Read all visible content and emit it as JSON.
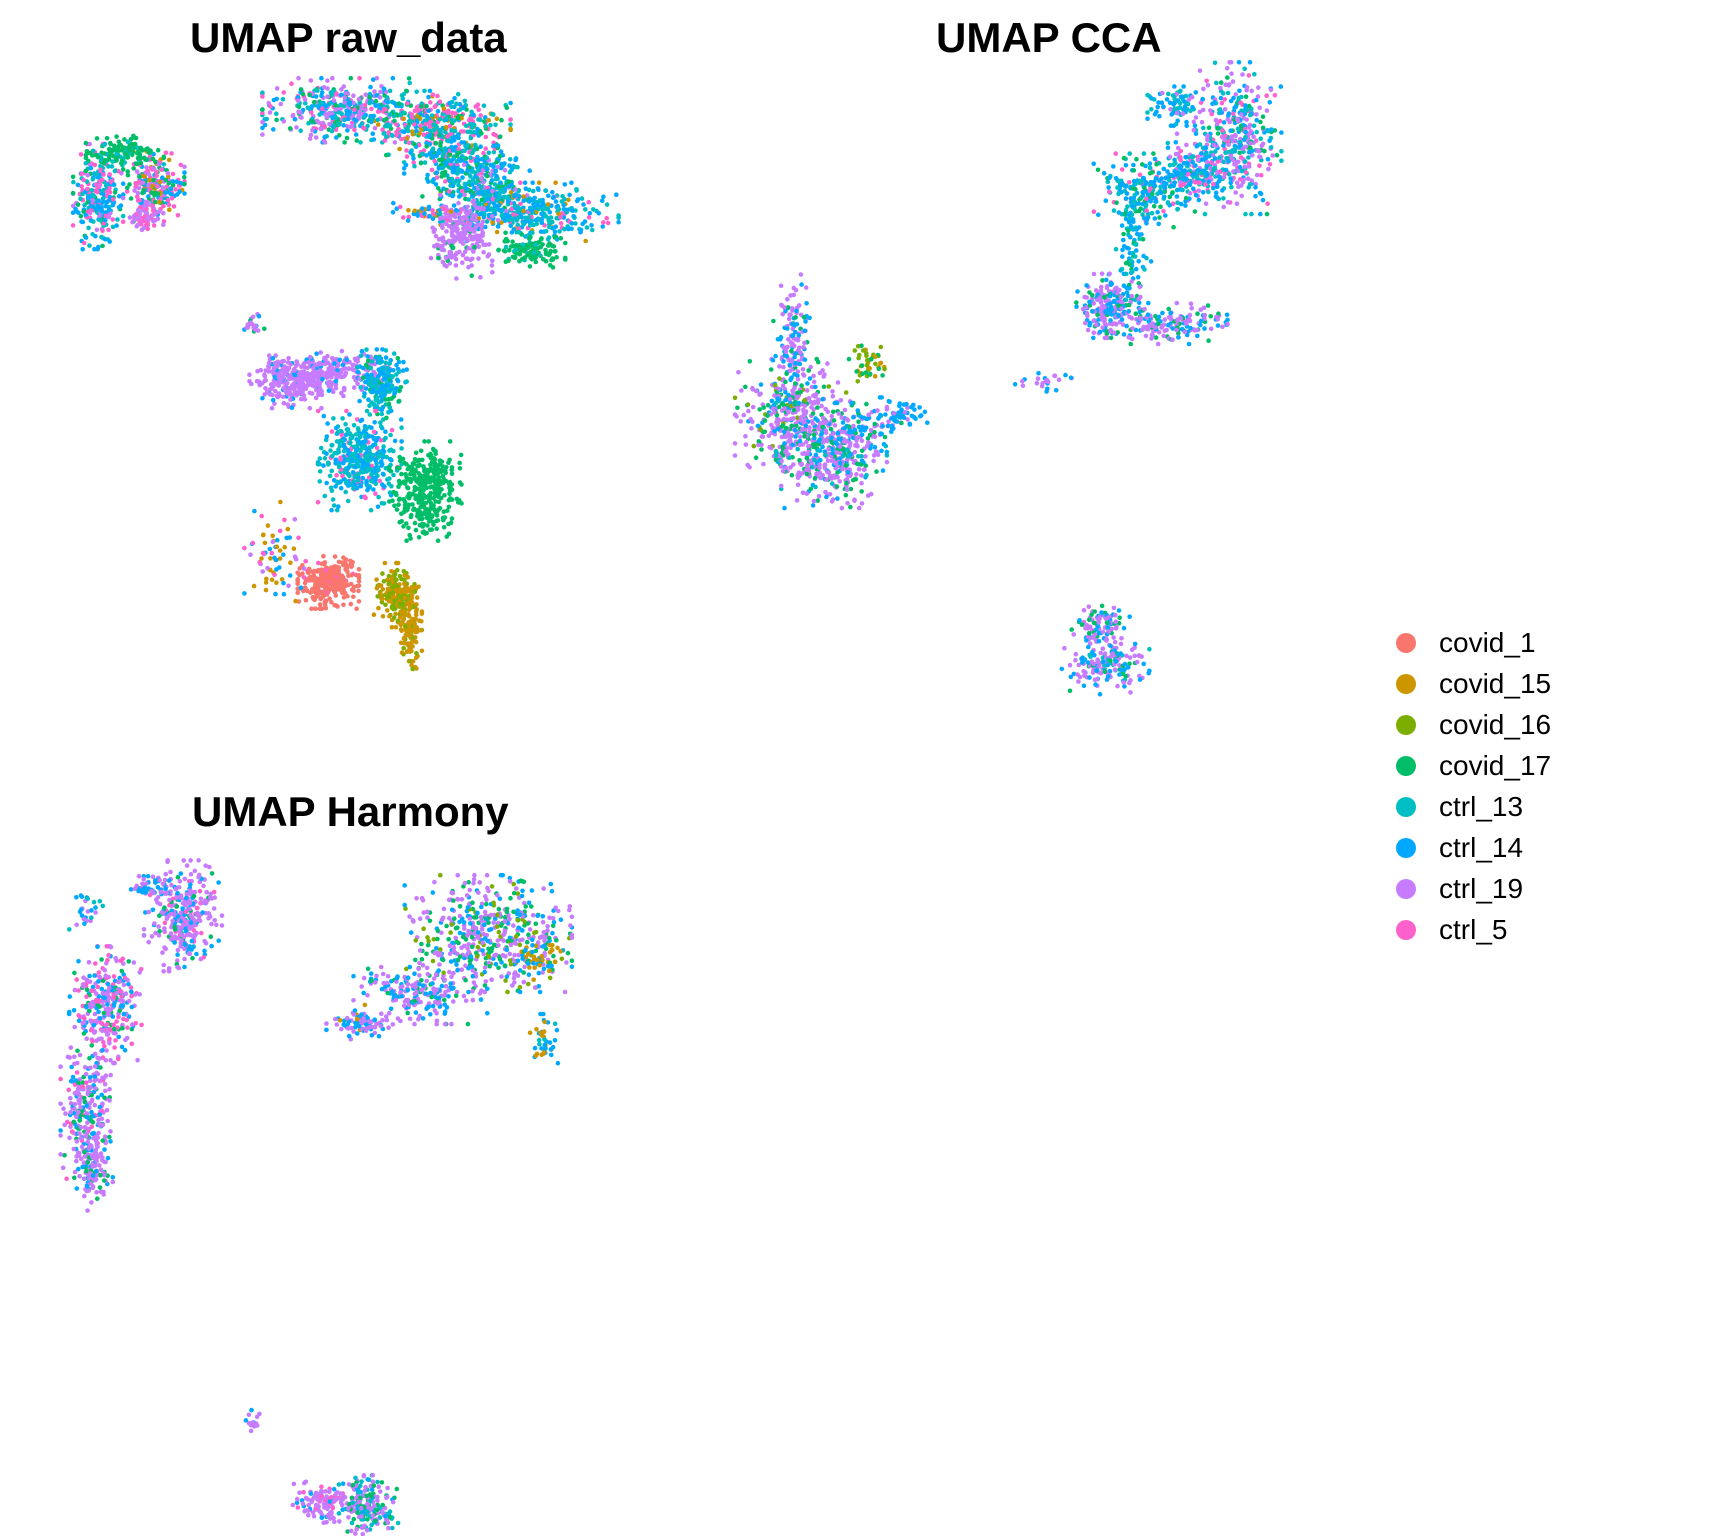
{
  "chart_data": [
    {
      "type": "scatter",
      "title": "UMAP raw_data",
      "xlabel": "",
      "ylabel": "",
      "axes_visible": false,
      "grid": false,
      "xlim": [
        -13,
        13
      ],
      "ylim": [
        -13,
        13
      ],
      "clusters": [
        {
          "x": -10.6,
          "y": 8.8,
          "sx": 0.45,
          "sy": 0.9,
          "n": 260,
          "mix": {
            "ctrl_14": 3,
            "ctrl_13": 2,
            "ctrl_5": 2,
            "covid_17": 1,
            "ctrl_19": 1
          }
        },
        {
          "x": -8.3,
          "y": 9.2,
          "sx": 0.55,
          "sy": 0.6,
          "n": 220,
          "mix": {
            "covid_17": 2,
            "ctrl_5": 2,
            "ctrl_14": 2,
            "ctrl_19": 1,
            "covid_15": 1
          }
        },
        {
          "x": -9.5,
          "y": 10.5,
          "sx": 0.7,
          "sy": 0.3,
          "n": 120,
          "mix": {
            "covid_17": 5,
            "ctrl_13": 1
          }
        },
        {
          "x": -8.6,
          "y": 7.9,
          "sx": 0.3,
          "sy": 0.25,
          "n": 60,
          "mix": {
            "ctrl_19": 4,
            "ctrl_5": 1
          }
        },
        {
          "x": -0.6,
          "y": 12.2,
          "sx": 1.4,
          "sy": 0.55,
          "n": 380,
          "mix": {
            "ctrl_19": 3,
            "ctrl_13": 2,
            "ctrl_14": 2,
            "ctrl_5": 1,
            "covid_17": 1
          }
        },
        {
          "x": 3.2,
          "y": 11.7,
          "sx": 1.4,
          "sy": 0.55,
          "n": 360,
          "mix": {
            "ctrl_5": 3,
            "ctrl_13": 2,
            "ctrl_14": 2,
            "covid_17": 1,
            "covid_15": 1
          }
        },
        {
          "x": 4.1,
          "y": 10.2,
          "sx": 0.9,
          "sy": 0.7,
          "n": 260,
          "mix": {
            "ctrl_14": 3,
            "ctrl_13": 2,
            "covid_17": 2,
            "ctrl_5": 1
          }
        },
        {
          "x": 5.6,
          "y": 9.2,
          "sx": 0.7,
          "sy": 0.7,
          "n": 240,
          "mix": {
            "ctrl_14": 3,
            "ctrl_13": 2,
            "covid_17": 1,
            "ctrl_19": 1
          }
        },
        {
          "x": 7.2,
          "y": 8.2,
          "sx": 1.6,
          "sy": 0.5,
          "n": 340,
          "mix": {
            "ctrl_14": 4,
            "ctrl_13": 3,
            "ctrl_5": 1,
            "covid_15": 1
          }
        },
        {
          "x": 4.4,
          "y": 7.3,
          "sx": 0.55,
          "sy": 0.75,
          "n": 230,
          "mix": {
            "ctrl_19": 9,
            "covid_17": 1
          }
        },
        {
          "x": 7.3,
          "y": 6.7,
          "sx": 0.6,
          "sy": 0.3,
          "n": 120,
          "mix": {
            "covid_17": 8,
            "ctrl_13": 1
          }
        },
        {
          "x": 2.6,
          "y": 8.2,
          "sx": 0.6,
          "sy": 0.15,
          "n": 40,
          "mix": {
            "ctrl_14": 2,
            "covid_15": 1,
            "ctrl_5": 1
          }
        },
        {
          "x": -4.3,
          "y": 3.9,
          "sx": 0.25,
          "sy": 0.25,
          "n": 20,
          "mix": {
            "ctrl_19": 2,
            "ctrl_14": 1,
            "covid_17": 1
          }
        },
        {
          "x": -2.4,
          "y": 1.5,
          "sx": 0.85,
          "sy": 0.45,
          "n": 300,
          "mix": {
            "ctrl_19": 9,
            "ctrl_14": 1
          }
        },
        {
          "x": -0.5,
          "y": 2.0,
          "sx": 1.0,
          "sy": 0.35,
          "n": 150,
          "mix": {
            "ctrl_19": 6,
            "ctrl_14": 1
          }
        },
        {
          "x": 1.1,
          "y": 1.4,
          "sx": 0.45,
          "sy": 0.6,
          "n": 200,
          "mix": {
            "ctrl_14": 3,
            "ctrl_13": 3,
            "covid_17": 1
          }
        },
        {
          "x": 0.2,
          "y": -1.6,
          "sx": 0.75,
          "sy": 0.85,
          "n": 420,
          "mix": {
            "ctrl_13": 5,
            "ctrl_14": 4,
            "ctrl_5": 1
          }
        },
        {
          "x": 2.9,
          "y": -2.8,
          "sx": 0.65,
          "sy": 0.85,
          "n": 360,
          "mix": {
            "covid_17": 10
          }
        },
        {
          "x": -1.1,
          "y": -6.4,
          "sx": 0.55,
          "sy": 0.45,
          "n": 300,
          "mix": {
            "covid_1": 12,
            "ctrl_5": 1
          }
        },
        {
          "x": 1.7,
          "y": -6.9,
          "sx": 0.4,
          "sy": 0.55,
          "n": 180,
          "mix": {
            "covid_16": 5,
            "covid_15": 3
          }
        },
        {
          "x": 2.3,
          "y": -8.2,
          "sx": 0.2,
          "sy": 0.7,
          "n": 130,
          "mix": {
            "covid_15": 6,
            "covid_16": 1
          }
        },
        {
          "x": -3.3,
          "y": -5.3,
          "sx": 0.55,
          "sy": 0.9,
          "n": 70,
          "mix": {
            "covid_15": 3,
            "ctrl_14": 2,
            "ctrl_19": 1,
            "ctrl_5": 1
          }
        }
      ]
    },
    {
      "type": "scatter",
      "title": "UMAP CCA",
      "xlabel": "",
      "ylabel": "",
      "axes_visible": false,
      "grid": false,
      "xlim": [
        -13,
        13
      ],
      "ylim": [
        -13,
        13
      ],
      "clusters": [
        {
          "x": 6.8,
          "y": 11.1,
          "sx": 0.75,
          "sy": 1.3,
          "n": 360,
          "mix": {
            "ctrl_19": 4,
            "ctrl_13": 2,
            "ctrl_14": 2,
            "ctrl_5": 1,
            "covid_17": 1
          }
        },
        {
          "x": 5.2,
          "y": 9.9,
          "sx": 0.8,
          "sy": 0.6,
          "n": 200,
          "mix": {
            "ctrl_14": 3,
            "ctrl_13": 2,
            "ctrl_19": 2,
            "ctrl_5": 1
          }
        },
        {
          "x": 3.2,
          "y": 9.0,
          "sx": 0.9,
          "sy": 0.65,
          "n": 220,
          "mix": {
            "ctrl_14": 4,
            "ctrl_13": 2,
            "covid_17": 1,
            "ctrl_5": 1
          }
        },
        {
          "x": 4.4,
          "y": 12.4,
          "sx": 0.5,
          "sy": 0.35,
          "n": 80,
          "mix": {
            "ctrl_14": 3,
            "ctrl_13": 2,
            "ctrl_19": 1
          }
        },
        {
          "x": 2.7,
          "y": 6.8,
          "sx": 0.3,
          "sy": 0.9,
          "n": 80,
          "mix": {
            "ctrl_14": 2,
            "ctrl_13": 2,
            "covid_17": 1
          }
        },
        {
          "x": 1.7,
          "y": 4.5,
          "sx": 0.55,
          "sy": 0.55,
          "n": 220,
          "mix": {
            "ctrl_19": 4,
            "ctrl_14": 3,
            "covid_17": 1
          }
        },
        {
          "x": 4.1,
          "y": 3.8,
          "sx": 1.0,
          "sy": 0.35,
          "n": 160,
          "mix": {
            "ctrl_19": 4,
            "ctrl_14": 2,
            "covid_17": 1
          }
        },
        {
          "x": -0.7,
          "y": 1.5,
          "sx": 0.55,
          "sy": 0.2,
          "n": 25,
          "mix": {
            "ctrl_19": 3,
            "ctrl_14": 1
          }
        },
        {
          "x": -10.7,
          "y": 0.1,
          "sx": 1.0,
          "sy": 1.0,
          "n": 380,
          "mix": {
            "ctrl_19": 6,
            "covid_17": 2,
            "ctrl_14": 2,
            "covid_16": 1
          }
        },
        {
          "x": -9.2,
          "y": -1.4,
          "sx": 0.95,
          "sy": 0.9,
          "n": 380,
          "mix": {
            "ctrl_19": 6,
            "covid_17": 2,
            "ctrl_14": 2,
            "ctrl_13": 1
          }
        },
        {
          "x": -10.7,
          "y": 3.2,
          "sx": 0.35,
          "sy": 1.1,
          "n": 120,
          "mix": {
            "ctrl_19": 4,
            "ctrl_14": 3,
            "covid_17": 1
          }
        },
        {
          "x": -7.6,
          "y": -0.2,
          "sx": 0.6,
          "sy": 0.4,
          "n": 60,
          "mix": {
            "ctrl_14": 4,
            "ctrl_19": 2,
            "covid_17": 1
          }
        },
        {
          "x": -6.5,
          "y": 0.2,
          "sx": 0.5,
          "sy": 0.3,
          "n": 45,
          "mix": {
            "ctrl_14": 5,
            "ctrl_19": 1
          }
        },
        {
          "x": -7.8,
          "y": 2.2,
          "sx": 0.3,
          "sy": 0.35,
          "n": 45,
          "mix": {
            "covid_16": 3,
            "covid_15": 2,
            "covid_17": 1
          }
        },
        {
          "x": 1.4,
          "y": -8.1,
          "sx": 0.5,
          "sy": 0.4,
          "n": 90,
          "mix": {
            "ctrl_19": 4,
            "ctrl_14": 2,
            "covid_17": 1
          }
        },
        {
          "x": 1.6,
          "y": -9.7,
          "sx": 0.75,
          "sy": 0.5,
          "n": 160,
          "mix": {
            "ctrl_19": 4,
            "ctrl_14": 3,
            "covid_17": 1,
            "ctrl_13": 1
          }
        }
      ]
    },
    {
      "type": "scatter",
      "title": "UMAP Harmony",
      "xlabel": "",
      "ylabel": "",
      "axes_visible": false,
      "grid": false,
      "xlim": [
        -13,
        13
      ],
      "ylim": [
        -13,
        13
      ],
      "clusters": [
        {
          "x": -7.1,
          "y": 10.8,
          "sx": 0.7,
          "sy": 0.95,
          "n": 320,
          "mix": {
            "ctrl_19": 5,
            "ctrl_14": 2,
            "ctrl_5": 1,
            "covid_17": 1
          }
        },
        {
          "x": -8.5,
          "y": 11.9,
          "sx": 0.4,
          "sy": 0.2,
          "n": 45,
          "mix": {
            "ctrl_14": 3,
            "ctrl_19": 2
          }
        },
        {
          "x": -11.1,
          "y": 11.0,
          "sx": 0.3,
          "sy": 0.35,
          "n": 25,
          "mix": {
            "ctrl_14": 2,
            "ctrl_13": 1,
            "ctrl_19": 1
          }
        },
        {
          "x": -10.3,
          "y": 7.3,
          "sx": 0.65,
          "sy": 1.0,
          "n": 300,
          "mix": {
            "ctrl_19": 4,
            "ctrl_14": 2,
            "ctrl_5": 2,
            "covid_17": 1
          }
        },
        {
          "x": -11.0,
          "y": 3.2,
          "sx": 0.5,
          "sy": 1.2,
          "n": 240,
          "mix": {
            "ctrl_19": 5,
            "ctrl_14": 2,
            "covid_17": 1,
            "ctrl_5": 1
          }
        },
        {
          "x": -10.8,
          "y": 0.8,
          "sx": 0.35,
          "sy": 0.7,
          "n": 120,
          "mix": {
            "ctrl_19": 5,
            "covid_17": 1,
            "ctrl_14": 1
          }
        },
        {
          "x": 5.5,
          "y": 10.1,
          "sx": 1.5,
          "sy": 1.0,
          "n": 500,
          "mix": {
            "ctrl_19": 5,
            "covid_17": 2,
            "ctrl_14": 2,
            "covid_16": 1
          }
        },
        {
          "x": 2.7,
          "y": 7.8,
          "sx": 1.2,
          "sy": 0.55,
          "n": 200,
          "mix": {
            "ctrl_19": 4,
            "ctrl_14": 3,
            "covid_17": 1
          }
        },
        {
          "x": 0.2,
          "y": 6.6,
          "sx": 0.6,
          "sy": 0.3,
          "n": 80,
          "mix": {
            "ctrl_14": 3,
            "ctrl_19": 3,
            "covid_15": 1
          }
        },
        {
          "x": 7.6,
          "y": 9.1,
          "sx": 0.5,
          "sy": 0.5,
          "n": 60,
          "mix": {
            "covid_15": 3,
            "ctrl_14": 2,
            "covid_17": 1
          }
        },
        {
          "x": 7.8,
          "y": 5.9,
          "sx": 0.25,
          "sy": 0.45,
          "n": 40,
          "mix": {
            "ctrl_14": 3,
            "covid_15": 2,
            "ctrl_13": 1
          }
        },
        {
          "x": -4.2,
          "y": -9.2,
          "sx": 0.15,
          "sy": 0.25,
          "n": 14,
          "mix": {
            "ctrl_19": 3,
            "ctrl_14": 1
          }
        },
        {
          "x": -1.3,
          "y": -12.3,
          "sx": 0.55,
          "sy": 0.35,
          "n": 120,
          "mix": {
            "ctrl_19": 5,
            "ctrl_5": 1,
            "ctrl_14": 1
          }
        },
        {
          "x": 0.6,
          "y": -12.5,
          "sx": 0.55,
          "sy": 0.55,
          "n": 180,
          "mix": {
            "ctrl_19": 4,
            "ctrl_13": 2,
            "covid_17": 2,
            "ctrl_14": 1
          }
        }
      ]
    }
  ],
  "legend": {
    "position": "right",
    "items": [
      {
        "label": "covid_1",
        "color": "#F8766D"
      },
      {
        "label": "covid_15",
        "color": "#CD9600"
      },
      {
        "label": "covid_16",
        "color": "#7CAE00"
      },
      {
        "label": "covid_17",
        "color": "#00BE67"
      },
      {
        "label": "ctrl_13",
        "color": "#00BFC4"
      },
      {
        "label": "ctrl_14",
        "color": "#00A9FF"
      },
      {
        "label": "ctrl_19",
        "color": "#C77CFF"
      },
      {
        "label": "ctrl_5",
        "color": "#FF61CC"
      }
    ]
  }
}
